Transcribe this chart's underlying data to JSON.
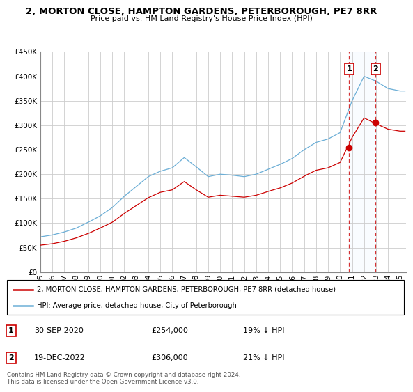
{
  "title": "2, MORTON CLOSE, HAMPTON GARDENS, PETERBOROUGH, PE7 8RR",
  "subtitle": "Price paid vs. HM Land Registry's House Price Index (HPI)",
  "legend_line1": "2, MORTON CLOSE, HAMPTON GARDENS, PETERBOROUGH, PE7 8RR (detached house)",
  "legend_line2": "HPI: Average price, detached house, City of Peterborough",
  "copyright": "Contains HM Land Registry data © Crown copyright and database right 2024.\nThis data is licensed under the Open Government Licence v3.0.",
  "sale1_label": "1",
  "sale1_date": "30-SEP-2020",
  "sale1_price": "£254,000",
  "sale1_hpi": "19% ↓ HPI",
  "sale1_year": 2020.75,
  "sale1_value": 254000,
  "sale2_label": "2",
  "sale2_date": "19-DEC-2022",
  "sale2_price": "£306,000",
  "sale2_hpi": "21% ↓ HPI",
  "sale2_year": 2022.96,
  "sale2_value": 306000,
  "hpi_color": "#6baed6",
  "price_color": "#cc0000",
  "marker_color": "#cc0000",
  "shade_color": "#ddeeff",
  "ylim": [
    0,
    450000
  ],
  "xlim_start": 1995.0,
  "xlim_end": 2025.5,
  "yticks": [
    0,
    50000,
    100000,
    150000,
    200000,
    250000,
    300000,
    350000,
    400000,
    450000
  ],
  "xtick_years": [
    1995,
    1996,
    1997,
    1998,
    1999,
    2000,
    2001,
    2002,
    2003,
    2004,
    2005,
    2006,
    2007,
    2008,
    2009,
    2010,
    2011,
    2012,
    2013,
    2014,
    2015,
    2016,
    2017,
    2018,
    2019,
    2020,
    2021,
    2022,
    2023,
    2024,
    2025
  ]
}
